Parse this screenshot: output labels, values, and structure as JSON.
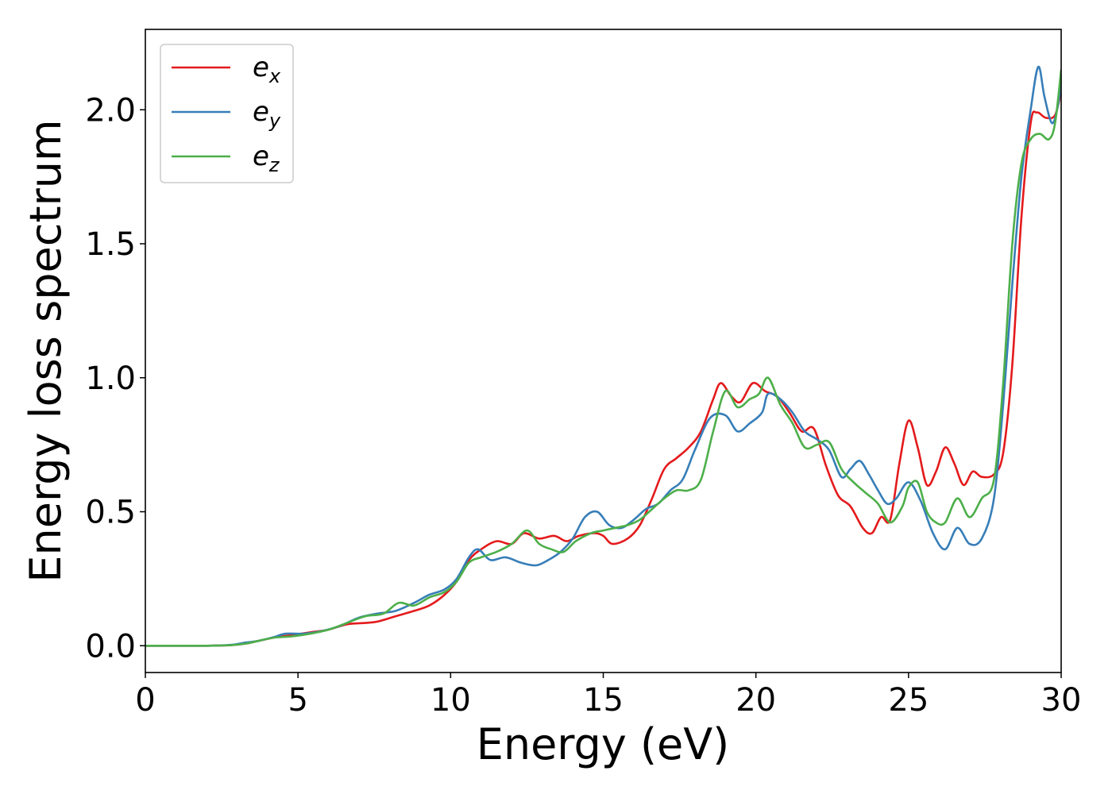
{
  "chart_data": {
    "type": "line",
    "title": "",
    "xlabel": "Energy (eV)",
    "ylabel": "Energy loss spectrum",
    "xlim": [
      0,
      30
    ],
    "ylim": [
      -0.1,
      2.3
    ],
    "xticks": [
      0,
      5,
      10,
      15,
      20,
      25,
      30
    ],
    "xtick_labels": [
      "0",
      "5",
      "10",
      "15",
      "20",
      "25",
      "30"
    ],
    "yticks": [
      0.0,
      0.5,
      1.0,
      1.5,
      2.0
    ],
    "ytick_labels": [
      "0.0",
      "0.5",
      "1.0",
      "1.5",
      "2.0"
    ],
    "grid": false,
    "legend_position": "top-left",
    "series": [
      {
        "name": "e_x",
        "legend_base": "e",
        "legend_sub": "x",
        "color": "#e41a1c",
        "x": [
          0,
          1,
          2,
          2.8,
          3.3,
          3.7,
          4.2,
          4.8,
          5.4,
          6,
          6.6,
          7.2,
          7.6,
          8.2,
          8.8,
          9.3,
          9.8,
          10.2,
          10.6,
          11.0,
          11.5,
          12.0,
          12.4,
          12.9,
          13.4,
          13.8,
          14.2,
          14.7,
          15.0,
          15.3,
          15.8,
          16.2,
          16.6,
          17.0,
          17.4,
          17.8,
          18.2,
          18.6,
          18.85,
          19.2,
          19.5,
          19.9,
          20.3,
          20.7,
          21.1,
          21.5,
          21.9,
          22.3,
          22.7,
          23.1,
          23.5,
          23.8,
          24.1,
          24.4,
          24.7,
          25.0,
          25.3,
          25.6,
          25.9,
          26.2,
          26.5,
          26.8,
          27.1,
          27.4,
          27.8,
          28.1,
          28.4,
          28.7,
          29.0,
          29.2,
          29.5,
          29.8,
          30.0
        ],
        "y": [
          0,
          0,
          0,
          0.002,
          0.008,
          0.018,
          0.03,
          0.04,
          0.05,
          0.06,
          0.08,
          0.085,
          0.09,
          0.11,
          0.13,
          0.15,
          0.19,
          0.24,
          0.32,
          0.36,
          0.39,
          0.38,
          0.42,
          0.4,
          0.41,
          0.39,
          0.41,
          0.42,
          0.41,
          0.38,
          0.4,
          0.45,
          0.55,
          0.66,
          0.7,
          0.74,
          0.8,
          0.92,
          0.98,
          0.93,
          0.91,
          0.98,
          0.95,
          0.93,
          0.87,
          0.8,
          0.81,
          0.67,
          0.56,
          0.52,
          0.44,
          0.42,
          0.48,
          0.47,
          0.68,
          0.84,
          0.74,
          0.6,
          0.65,
          0.74,
          0.68,
          0.6,
          0.65,
          0.63,
          0.64,
          0.72,
          1.05,
          1.6,
          1.95,
          1.99,
          1.97,
          1.98,
          2.07
        ]
      },
      {
        "name": "e_y",
        "legend_base": "e",
        "legend_sub": "y",
        "color": "#377eb8",
        "x": [
          0,
          1,
          2,
          2.8,
          3.3,
          3.7,
          4.2,
          4.6,
          5.2,
          5.8,
          6.4,
          7.0,
          7.6,
          8.2,
          8.8,
          9.3,
          9.8,
          10.2,
          10.6,
          10.9,
          11.3,
          11.8,
          12.3,
          12.8,
          13.2,
          13.6,
          14.0,
          14.4,
          14.8,
          15.2,
          15.6,
          16.0,
          16.4,
          16.8,
          17.2,
          17.6,
          18.0,
          18.5,
          19.0,
          19.4,
          19.8,
          20.2,
          20.4,
          20.8,
          21.2,
          21.6,
          22.0,
          22.4,
          22.8,
          23.1,
          23.4,
          23.7,
          24.0,
          24.3,
          24.6,
          25.0,
          25.4,
          25.8,
          26.2,
          26.6,
          27.0,
          27.4,
          27.8,
          28.1,
          28.4,
          28.7,
          29.0,
          29.25,
          29.45,
          29.7,
          29.9,
          30.0
        ],
        "y": [
          0,
          0,
          0,
          0.003,
          0.012,
          0.018,
          0.032,
          0.045,
          0.045,
          0.055,
          0.075,
          0.105,
          0.12,
          0.13,
          0.16,
          0.19,
          0.21,
          0.25,
          0.33,
          0.36,
          0.32,
          0.33,
          0.31,
          0.3,
          0.32,
          0.35,
          0.4,
          0.48,
          0.5,
          0.45,
          0.44,
          0.47,
          0.51,
          0.53,
          0.58,
          0.62,
          0.73,
          0.85,
          0.86,
          0.8,
          0.83,
          0.87,
          0.94,
          0.92,
          0.87,
          0.8,
          0.77,
          0.73,
          0.63,
          0.66,
          0.69,
          0.64,
          0.58,
          0.53,
          0.55,
          0.61,
          0.54,
          0.42,
          0.36,
          0.44,
          0.38,
          0.4,
          0.55,
          0.9,
          1.35,
          1.75,
          2.0,
          2.16,
          2.05,
          1.95,
          2.02,
          2.12
        ]
      },
      {
        "name": "e_z",
        "legend_base": "e",
        "legend_sub": "z",
        "color": "#4daf4a",
        "x": [
          0,
          1,
          2,
          2.8,
          3.3,
          3.7,
          4.2,
          4.8,
          5.4,
          6,
          6.6,
          7.2,
          7.8,
          8.3,
          8.8,
          9.3,
          9.8,
          10.2,
          10.6,
          11.0,
          11.5,
          12.0,
          12.5,
          12.9,
          13.3,
          13.7,
          14.1,
          14.6,
          15.0,
          15.4,
          15.8,
          16.2,
          16.6,
          17.0,
          17.4,
          17.8,
          18.2,
          18.6,
          19.0,
          19.4,
          19.8,
          20.1,
          20.4,
          20.8,
          21.2,
          21.6,
          22.0,
          22.4,
          22.8,
          23.2,
          23.6,
          24.0,
          24.4,
          24.8,
          25.0,
          25.3,
          25.6,
          25.9,
          26.2,
          26.6,
          27.0,
          27.4,
          27.8,
          28.1,
          28.4,
          28.7,
          29.0,
          29.3,
          29.6,
          29.8,
          30.0
        ],
        "y": [
          0,
          0,
          0,
          0.002,
          0.008,
          0.018,
          0.03,
          0.035,
          0.045,
          0.06,
          0.085,
          0.11,
          0.12,
          0.16,
          0.15,
          0.18,
          0.2,
          0.24,
          0.31,
          0.33,
          0.35,
          0.38,
          0.43,
          0.38,
          0.36,
          0.35,
          0.39,
          0.42,
          0.43,
          0.44,
          0.45,
          0.47,
          0.51,
          0.55,
          0.58,
          0.58,
          0.62,
          0.8,
          0.95,
          0.89,
          0.92,
          0.94,
          1.0,
          0.9,
          0.83,
          0.74,
          0.75,
          0.76,
          0.66,
          0.61,
          0.57,
          0.53,
          0.46,
          0.52,
          0.59,
          0.61,
          0.5,
          0.46,
          0.46,
          0.55,
          0.48,
          0.55,
          0.62,
          0.98,
          1.5,
          1.8,
          1.89,
          1.91,
          1.89,
          1.95,
          2.15
        ]
      }
    ]
  }
}
